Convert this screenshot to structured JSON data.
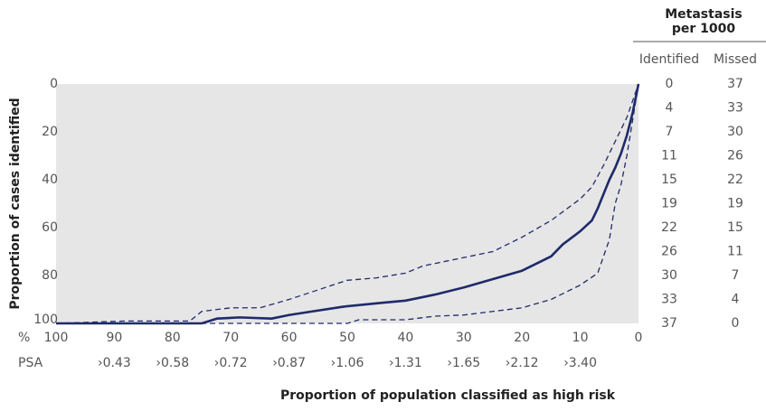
{
  "chart_data": {
    "type": "line",
    "ylabel": "Proportion of cases identified",
    "xlabel": "Proportion of population classified as high risk",
    "xunit": "%",
    "xlim": [
      100,
      0
    ],
    "xticks": [
      100,
      90,
      80,
      70,
      60,
      50,
      40,
      30,
      20,
      10,
      0
    ],
    "ylim": [
      0,
      100
    ],
    "y_inverted": true,
    "yticks": [
      0,
      20,
      40,
      60,
      80,
      100
    ],
    "x2label": "PSA",
    "x2ticks": [
      {
        "value": 90,
        "label": "›0.43"
      },
      {
        "value": 80,
        "label": "›0.58"
      },
      {
        "value": 70,
        "label": "›0.72"
      },
      {
        "value": 60,
        "label": "›0.87"
      },
      {
        "value": 50,
        "label": "›1.06"
      },
      {
        "value": 40,
        "label": "›1.31"
      },
      {
        "value": 30,
        "label": "›1.65"
      },
      {
        "value": 20,
        "label": "›2.12"
      },
      {
        "value": 10,
        "label": "›3.40"
      }
    ],
    "background": "#e6e6e6",
    "series": [
      {
        "color": "#1f2a6b",
        "dashed": false,
        "x": [
          100,
          75,
          72.4,
          68.5,
          63,
          60,
          56,
          50.6,
          44.4,
          40,
          38,
          35,
          30,
          20,
          15,
          13,
          10,
          8,
          7,
          6,
          5,
          4,
          3,
          2,
          1,
          0
        ],
        "values": [
          100,
          100,
          98,
          97.5,
          98,
          96.5,
          95,
          93,
          91.5,
          90.5,
          89.5,
          88,
          85,
          78,
          72,
          67,
          61.5,
          57,
          52,
          46,
          40,
          35,
          29,
          21.5,
          12,
          0
        ]
      },
      {
        "color": "#1f2a6b",
        "dashed": true,
        "x": [
          100,
          88,
          77,
          75,
          70,
          65,
          60,
          55,
          50,
          45,
          40,
          37,
          30,
          25,
          20,
          15,
          10,
          8,
          6,
          4,
          2,
          0
        ],
        "values": [
          100,
          99,
          99,
          95,
          93.5,
          93.5,
          90,
          86,
          82,
          81,
          79,
          76,
          72.5,
          70,
          64,
          57,
          48,
          43,
          34,
          24,
          14,
          0
        ]
      },
      {
        "color": "#1f2a6b",
        "dashed": true,
        "x": [
          100,
          50,
          48,
          40,
          35,
          30,
          25,
          20,
          15,
          10,
          7,
          5,
          4,
          3,
          2,
          1,
          0
        ],
        "values": [
          100,
          100,
          98.5,
          98.5,
          97,
          96.5,
          95,
          93.5,
          90,
          84,
          79,
          65,
          50,
          42,
          30,
          15,
          0
        ]
      }
    ],
    "side_table": {
      "title_lines": [
        "Metastasis",
        "per 1000"
      ],
      "columns": [
        "Identified",
        "Missed"
      ],
      "rows": [
        [
          0,
          37
        ],
        [
          4,
          33
        ],
        [
          7,
          30
        ],
        [
          11,
          26
        ],
        [
          15,
          22
        ],
        [
          19,
          19
        ],
        [
          22,
          15
        ],
        [
          26,
          11
        ],
        [
          30,
          7
        ],
        [
          33,
          4
        ],
        [
          37,
          0
        ]
      ]
    }
  }
}
